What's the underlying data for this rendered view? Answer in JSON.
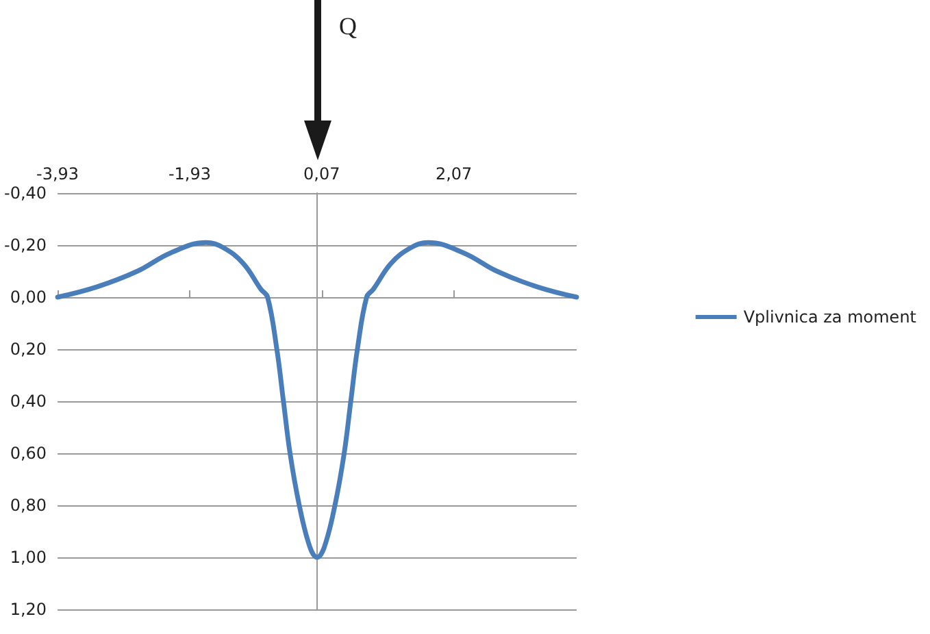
{
  "chart_data": {
    "type": "line",
    "annotations": [
      "Q"
    ],
    "xlim": [
      -3.93,
      3.93
    ],
    "xticks": [
      {
        "value": -3.93,
        "label": "-3,93"
      },
      {
        "value": -1.93,
        "label": "-1,93"
      },
      {
        "value": 0.07,
        "label": "0,07"
      },
      {
        "value": 2.07,
        "label": "2,07"
      }
    ],
    "ylim": [
      1.2,
      -0.4
    ],
    "yticks": [
      {
        "value": -0.4,
        "label": "-0,40"
      },
      {
        "value": -0.2,
        "label": "-0,20"
      },
      {
        "value": 0,
        "label": "0,00"
      },
      {
        "value": 0.2,
        "label": "0,20"
      },
      {
        "value": 0.4,
        "label": "0,40"
      },
      {
        "value": 0.6,
        "label": "0,60"
      },
      {
        "value": 0.8,
        "label": "0,80"
      },
      {
        "value": 1,
        "label": "1,00"
      },
      {
        "value": 1.2,
        "label": "1,20"
      }
    ],
    "grid": "y",
    "legend": "right",
    "marker": "none",
    "line_style": "solid",
    "series": [
      {
        "name": "Vplivnica za moment",
        "color": "#4a7ebb",
        "x": [
          -3.93,
          -3.33,
          -2.72,
          -2.22,
          -1.68,
          -1.42,
          -1.12,
          -0.85,
          -0.75,
          -0.61,
          -0.51,
          -0.41,
          -0.27,
          -0.11,
          0,
          0.11,
          0.27,
          0.41,
          0.51,
          0.61,
          0.75,
          0.85,
          1.12,
          1.42,
          1.68,
          2.22,
          2.72,
          3.33,
          3.93
        ],
        "values": [
          0,
          -0.04,
          -0.1,
          -0.17,
          -0.21,
          -0.19,
          -0.13,
          -0.03,
          0,
          0.2,
          0.4,
          0.6,
          0.8,
          0.96,
          1,
          0.96,
          0.8,
          0.6,
          0.4,
          0.2,
          0,
          -0.03,
          -0.13,
          -0.19,
          -0.21,
          -0.17,
          -0.1,
          -0.04,
          0
        ]
      }
    ]
  }
}
